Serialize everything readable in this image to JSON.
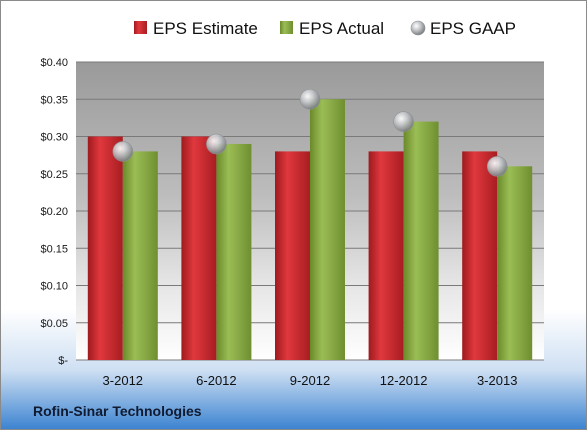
{
  "chart_data": {
    "type": "bar",
    "title": "",
    "xlabel": "",
    "ylabel": "",
    "company": "Rofin-Sinar Technologies",
    "categories": [
      "3-2012",
      "6-2012",
      "9-2012",
      "12-2012",
      "3-2013"
    ],
    "y_ticks": [
      "$-",
      "$0.05",
      "$0.10",
      "$0.15",
      "$0.20",
      "$0.25",
      "$0.30",
      "$0.35",
      "$0.40"
    ],
    "ylim": [
      0,
      0.4
    ],
    "grid": true,
    "legend_position": "top",
    "series": [
      {
        "name": "EPS Estimate",
        "kind": "bar",
        "color": "#c0252a",
        "values": [
          0.3,
          0.3,
          0.28,
          0.28,
          0.28
        ]
      },
      {
        "name": "EPS Actual",
        "kind": "bar",
        "color": "#7f9f3a",
        "values": [
          0.28,
          0.29,
          0.35,
          0.32,
          0.26
        ]
      },
      {
        "name": "EPS GAAP",
        "kind": "marker",
        "color": "#a8aaad",
        "values": [
          0.28,
          0.29,
          0.35,
          0.32,
          0.26
        ]
      }
    ]
  }
}
